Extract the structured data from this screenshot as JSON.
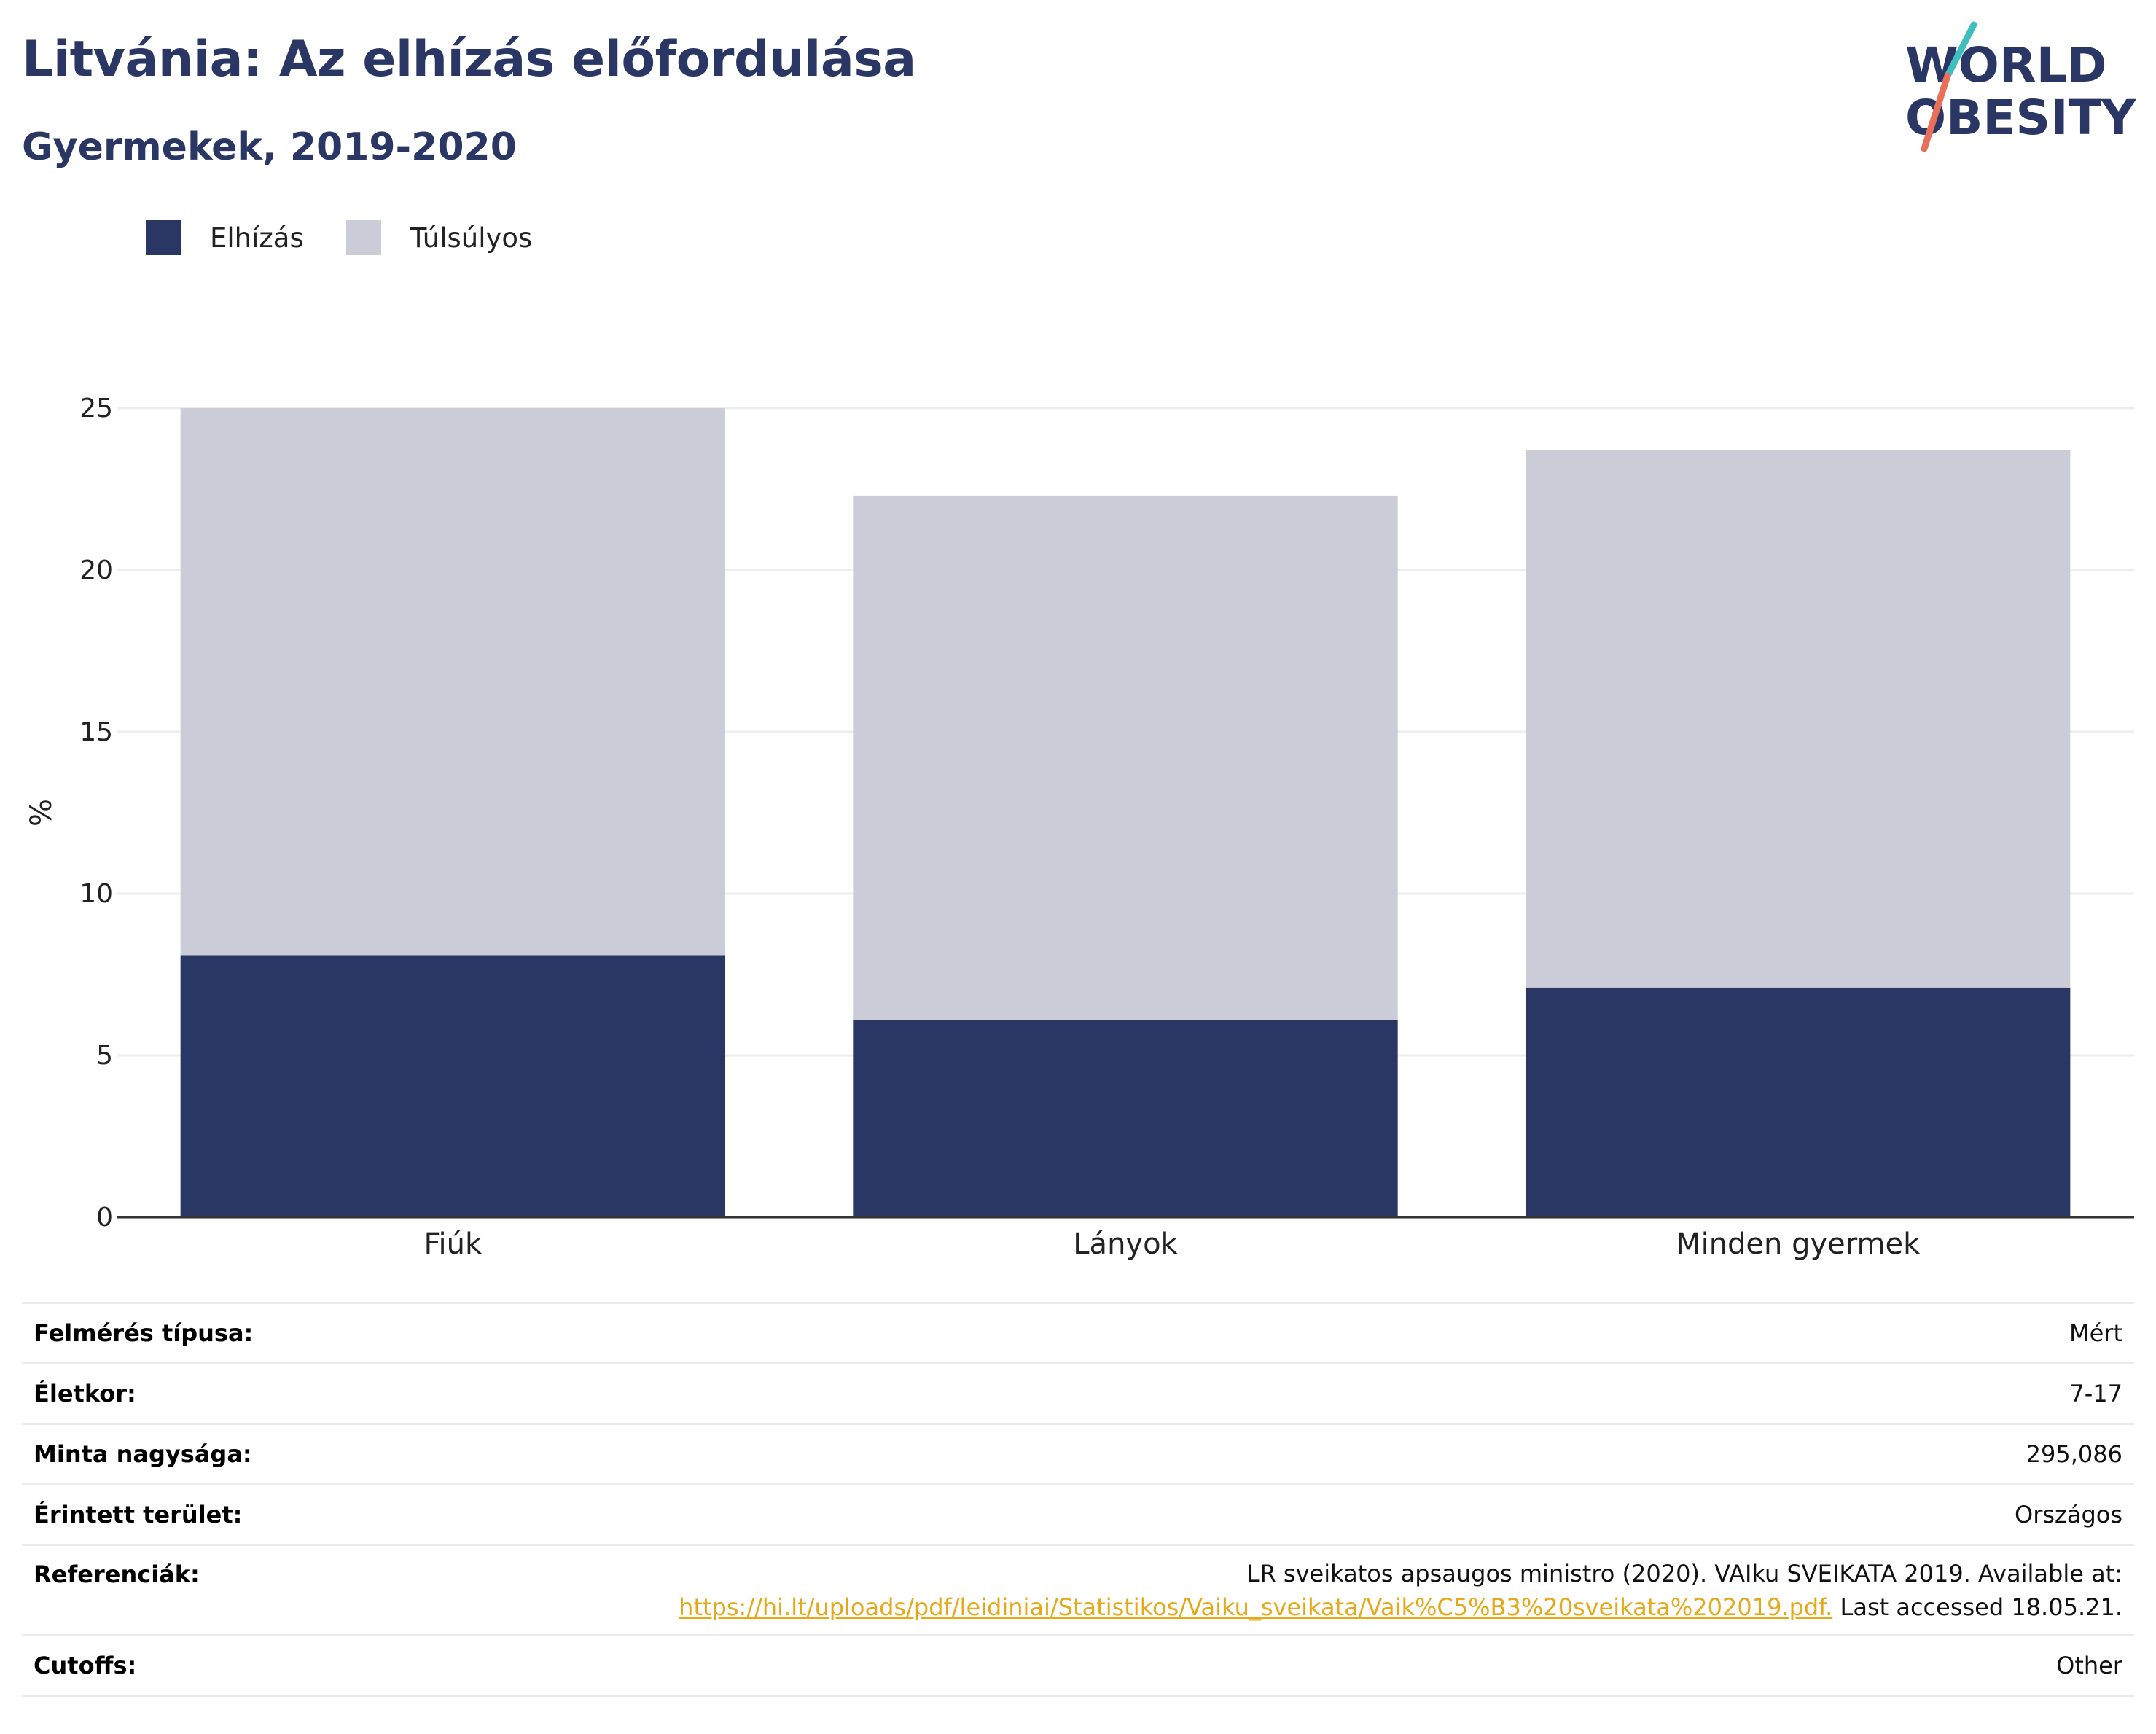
{
  "title": "Litvánia: Az elhízás előfordulása",
  "subtitle": "Gyermekek, 2019-2020",
  "logo": {
    "line1": "WORLD",
    "line2": "OBESITY"
  },
  "colors": {
    "obesity": "#2a3664",
    "overweight": "#cacdd8",
    "title": "#2a3664",
    "link": "#e6a817"
  },
  "chart_data": {
    "type": "bar",
    "stacked": true,
    "categories": [
      "Fiúk",
      "Lányok",
      "Minden gyermek"
    ],
    "series": [
      {
        "name": "Elhízás",
        "values": [
          8.1,
          6.1,
          7.1
        ]
      },
      {
        "name": "Túlsúlyos",
        "values": [
          16.9,
          16.2,
          16.6
        ]
      }
    ],
    "ylabel": "%",
    "xlabel": "",
    "ylim": [
      0,
      25
    ],
    "yticks": [
      0,
      5,
      10,
      15,
      20,
      25
    ],
    "grid": true,
    "legend": "top-left"
  },
  "info": {
    "rows": [
      {
        "label": "Felmérés típusa:",
        "value": "Mért"
      },
      {
        "label": "Életkor:",
        "value": "7-17"
      },
      {
        "label": "Minta nagysága:",
        "value": "295,086"
      },
      {
        "label": "Érintett terület:",
        "value": "Országos"
      }
    ],
    "references": {
      "label": "Referenciák:",
      "text": "LR sveikatos apsaugos ministro (2020). VAIku SVEIKATA 2019. Available at:",
      "link": "https://hi.lt/uploads/pdf/leidiniai/Statistikos/Vaiku_sveikata/Vaik%C5%B3%20sveikata%202019.pdf.",
      "suffix": " Last accessed 18.05.21."
    },
    "cutoffs": {
      "label": "Cutoffs:",
      "value": "Other"
    }
  }
}
